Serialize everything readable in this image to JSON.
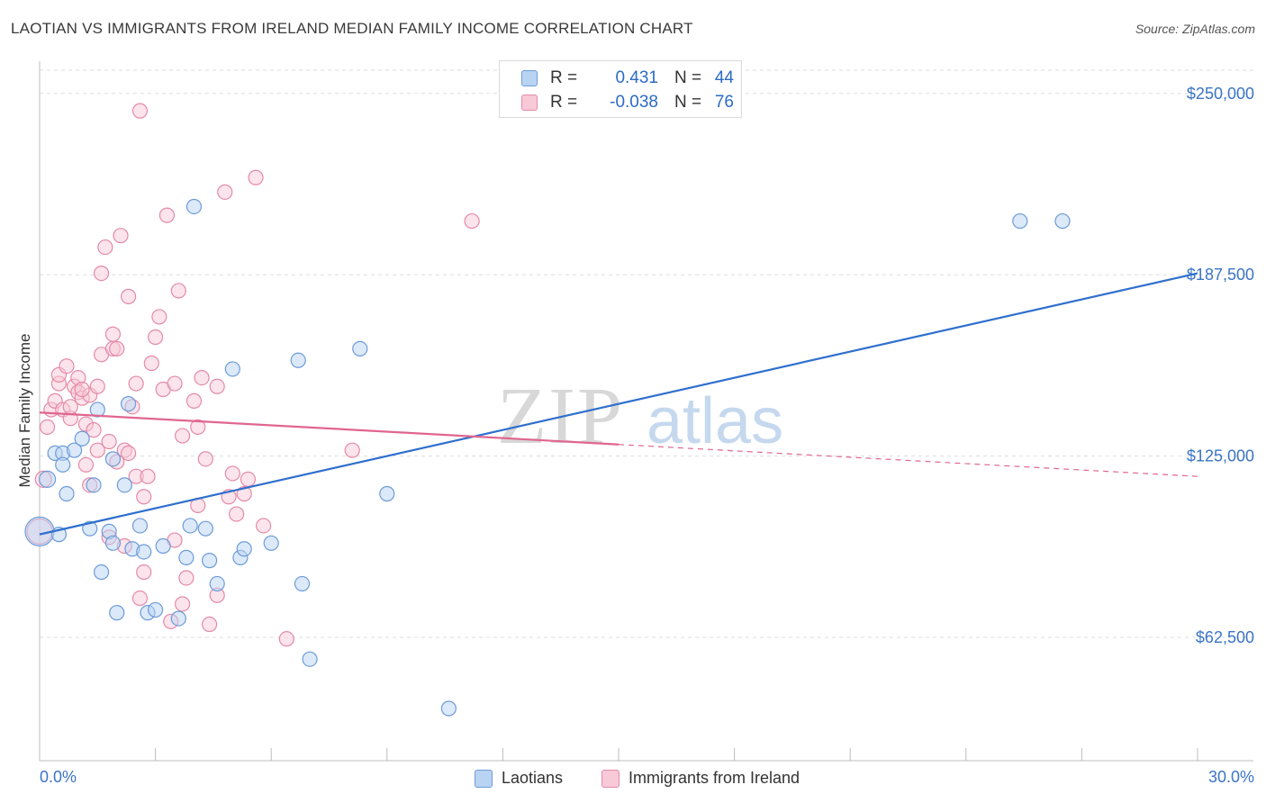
{
  "title": "LAOTIAN VS IMMIGRANTS FROM IRELAND MEDIAN FAMILY INCOME CORRELATION CHART",
  "source": "Source: ZipAtlas.com",
  "watermark": {
    "zip": "ZIP",
    "atlas": "atlas"
  },
  "legend_top": {
    "rows": [
      {
        "r_label": "R =",
        "r_value": "0.431",
        "n_label": "N =",
        "n_value": "44"
      },
      {
        "r_label": "R =",
        "r_value": "-0.038",
        "n_label": "N =",
        "n_value": "76"
      }
    ]
  },
  "legend_bottom": {
    "series_a": "Laotians",
    "series_b": "Immigrants from Ireland"
  },
  "chart_data": {
    "type": "scatter",
    "title": "LAOTIAN VS IMMIGRANTS FROM IRELAND MEDIAN FAMILY INCOME CORRELATION CHART",
    "xlabel": "",
    "ylabel": "Median Family Income",
    "xlim": [
      0,
      30
    ],
    "ylim": [
      20000,
      258000
    ],
    "x_tick_labels": [
      "0.0%",
      "30.0%"
    ],
    "y_ticks": [
      62500,
      125000,
      187500,
      250000
    ],
    "y_tick_labels": [
      "$62,500",
      "$125,000",
      "$187,500",
      "$250,000"
    ],
    "colors": {
      "series_a": "#6c9bd8",
      "series_a_fill": "#b9d3f3",
      "series_a_line": "#2f6fce",
      "series_b": "#e48aa8",
      "series_b_fill": "#f8c9d7",
      "series_b_line": "#e0668f"
    },
    "series": [
      {
        "name": "Laotians",
        "r": 0.431,
        "n": 44,
        "trend": {
          "x0": 0.0,
          "y0": 98000,
          "x1": 30.0,
          "y1": 188000,
          "solid_to": 30.0
        },
        "points": [
          [
            0.0,
            99000,
            16
          ],
          [
            0.2,
            117000,
            9
          ],
          [
            0.4,
            126000,
            8
          ],
          [
            0.6,
            126000,
            8
          ],
          [
            0.6,
            122000,
            8
          ],
          [
            0.7,
            112000,
            8
          ],
          [
            0.9,
            127000,
            8
          ],
          [
            1.1,
            131000,
            8
          ],
          [
            1.3,
            100000,
            8
          ],
          [
            1.4,
            115000,
            8
          ],
          [
            1.5,
            141000,
            8
          ],
          [
            1.6,
            85000,
            8
          ],
          [
            1.8,
            99000,
            8
          ],
          [
            1.9,
            95000,
            8
          ],
          [
            2.0,
            71000,
            8
          ],
          [
            2.2,
            115000,
            8
          ],
          [
            2.3,
            143000,
            8
          ],
          [
            2.4,
            93000,
            8
          ],
          [
            2.6,
            101000,
            8
          ],
          [
            2.7,
            92000,
            8
          ],
          [
            2.8,
            71000,
            8
          ],
          [
            3.0,
            72000,
            8
          ],
          [
            3.2,
            94000,
            8
          ],
          [
            3.6,
            69000,
            8
          ],
          [
            3.8,
            90000,
            8
          ],
          [
            3.9,
            101000,
            8
          ],
          [
            4.0,
            211000,
            8
          ],
          [
            4.3,
            100000,
            8
          ],
          [
            4.4,
            89000,
            8
          ],
          [
            4.6,
            81000,
            8
          ],
          [
            5.0,
            155000,
            8
          ],
          [
            5.2,
            90000,
            8
          ],
          [
            5.3,
            93000,
            8
          ],
          [
            6.0,
            95000,
            8
          ],
          [
            6.7,
            158000,
            8
          ],
          [
            6.8,
            81000,
            8
          ],
          [
            7.0,
            55000,
            8
          ],
          [
            8.3,
            162000,
            8
          ],
          [
            9.0,
            112000,
            8
          ],
          [
            10.6,
            38000,
            8
          ],
          [
            25.4,
            206000,
            8
          ],
          [
            26.5,
            206000,
            8
          ],
          [
            0.5,
            98000,
            8
          ],
          [
            1.9,
            124000,
            8
          ]
        ]
      },
      {
        "name": "Immigrants from Ireland",
        "r": -0.038,
        "n": 76,
        "trend": {
          "x0": 0.0,
          "y0": 140000,
          "x1": 30.0,
          "y1": 118000,
          "solid_to": 15.0
        },
        "points": [
          [
            0.0,
            99000,
            14
          ],
          [
            0.1,
            117000,
            9
          ],
          [
            0.2,
            135000,
            8
          ],
          [
            0.3,
            141000,
            8
          ],
          [
            0.4,
            144000,
            8
          ],
          [
            0.5,
            150000,
            8
          ],
          [
            0.5,
            153000,
            8
          ],
          [
            0.6,
            141000,
            8
          ],
          [
            0.7,
            156000,
            8
          ],
          [
            0.8,
            138000,
            8
          ],
          [
            0.9,
            149000,
            8
          ],
          [
            1.0,
            147000,
            8
          ],
          [
            1.0,
            152000,
            8
          ],
          [
            1.1,
            145000,
            8
          ],
          [
            1.2,
            136000,
            8
          ],
          [
            1.2,
            122000,
            8
          ],
          [
            1.3,
            146000,
            8
          ],
          [
            1.3,
            115000,
            8
          ],
          [
            1.4,
            134000,
            8
          ],
          [
            1.5,
            127000,
            8
          ],
          [
            1.5,
            149000,
            8
          ],
          [
            1.6,
            160000,
            8
          ],
          [
            1.6,
            188000,
            8
          ],
          [
            1.7,
            197000,
            8
          ],
          [
            1.8,
            130000,
            8
          ],
          [
            1.8,
            97000,
            8
          ],
          [
            1.9,
            162000,
            8
          ],
          [
            1.9,
            167000,
            8
          ],
          [
            2.0,
            162000,
            8
          ],
          [
            2.0,
            123000,
            8
          ],
          [
            2.1,
            201000,
            8
          ],
          [
            2.2,
            127000,
            8
          ],
          [
            2.3,
            126000,
            8
          ],
          [
            2.3,
            180000,
            8
          ],
          [
            2.4,
            142000,
            8
          ],
          [
            2.5,
            118000,
            8
          ],
          [
            2.5,
            150000,
            8
          ],
          [
            2.6,
            76000,
            8
          ],
          [
            2.7,
            111000,
            8
          ],
          [
            2.7,
            85000,
            8
          ],
          [
            2.8,
            118000,
            8
          ],
          [
            2.9,
            157000,
            8
          ],
          [
            3.0,
            166000,
            8
          ],
          [
            3.1,
            173000,
            8
          ],
          [
            3.2,
            148000,
            8
          ],
          [
            3.3,
            208000,
            8
          ],
          [
            3.4,
            68000,
            8
          ],
          [
            3.5,
            96000,
            8
          ],
          [
            3.5,
            150000,
            8
          ],
          [
            3.6,
            182000,
            8
          ],
          [
            3.7,
            132000,
            8
          ],
          [
            3.7,
            74000,
            8
          ],
          [
            3.8,
            83000,
            8
          ],
          [
            4.0,
            144000,
            8
          ],
          [
            4.1,
            108000,
            8
          ],
          [
            4.1,
            135000,
            8
          ],
          [
            4.2,
            152000,
            8
          ],
          [
            4.3,
            124000,
            8
          ],
          [
            4.4,
            67000,
            8
          ],
          [
            4.6,
            149000,
            8
          ],
          [
            4.6,
            77000,
            8
          ],
          [
            4.8,
            216000,
            8
          ],
          [
            4.9,
            111000,
            8
          ],
          [
            5.0,
            119000,
            8
          ],
          [
            5.1,
            105000,
            8
          ],
          [
            5.3,
            112000,
            8
          ],
          [
            5.4,
            117000,
            8
          ],
          [
            5.6,
            221000,
            8
          ],
          [
            5.8,
            101000,
            8
          ],
          [
            6.4,
            62000,
            8
          ],
          [
            8.1,
            127000,
            8
          ],
          [
            11.2,
            206000,
            8
          ],
          [
            2.6,
            244000,
            8
          ],
          [
            0.8,
            142000,
            8
          ],
          [
            1.1,
            148000,
            8
          ],
          [
            2.2,
            94000,
            8
          ]
        ]
      }
    ]
  }
}
